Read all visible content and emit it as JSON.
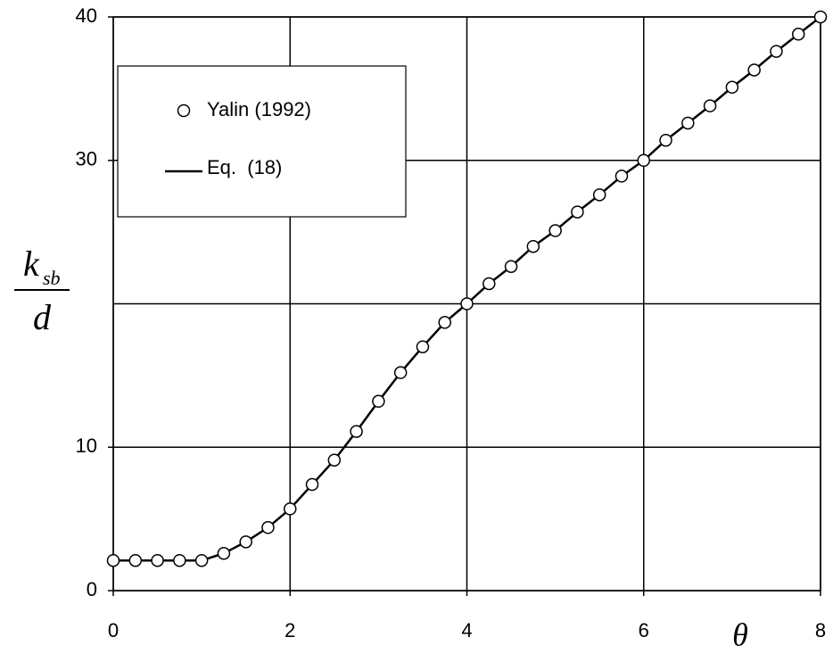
{
  "chart_data": {
    "type": "line",
    "xlabel": "θ",
    "ylabel": {
      "numerator": "k",
      "subscript": "sb",
      "denominator": "d"
    },
    "xlim": [
      0,
      8
    ],
    "xticks": [
      0,
      2,
      4,
      6,
      8
    ],
    "ylim": [
      0,
      40
    ],
    "yticks": [
      0,
      10,
      30,
      40
    ],
    "ygrid": [
      0,
      10,
      20,
      30,
      40
    ],
    "grid": true,
    "legend": "upper left",
    "x": [
      0,
      0.25,
      0.5,
      0.75,
      1,
      1.25,
      1.5,
      1.75,
      2,
      2.25,
      2.5,
      2.75,
      3,
      3.25,
      3.5,
      3.75,
      4,
      4.25,
      4.5,
      4.75,
      5,
      5.25,
      5.5,
      5.75,
      6,
      6.25,
      6.5,
      6.75,
      7,
      7.25,
      7.5,
      7.75,
      8
    ],
    "series": [
      {
        "name": "Yalin (1992)",
        "color": "#000000",
        "marker": "circle",
        "values": [
          2.1,
          2.1,
          2.1,
          2.1,
          2.1,
          2.6,
          3.4,
          4.4,
          5.7,
          7.4,
          9.1,
          11.1,
          13.2,
          15.2,
          17.0,
          18.7,
          20.0,
          21.4,
          22.6,
          24.0,
          25.1,
          26.4,
          27.6,
          28.9,
          30.0,
          31.4,
          32.6,
          33.8,
          35.1,
          36.3,
          37.6,
          38.8,
          40.0
        ]
      },
      {
        "name": "Eq.  (18)",
        "color": "#000000",
        "marker": "line",
        "values": [
          2.1,
          2.1,
          2.1,
          2.1,
          2.1,
          2.6,
          3.4,
          4.4,
          5.7,
          7.4,
          9.1,
          11.1,
          13.2,
          15.2,
          17.0,
          18.7,
          20.0,
          21.4,
          22.6,
          24.0,
          25.1,
          26.4,
          27.6,
          28.9,
          30.0,
          31.4,
          32.6,
          33.8,
          35.1,
          36.3,
          37.6,
          38.8,
          40.0
        ]
      }
    ]
  }
}
